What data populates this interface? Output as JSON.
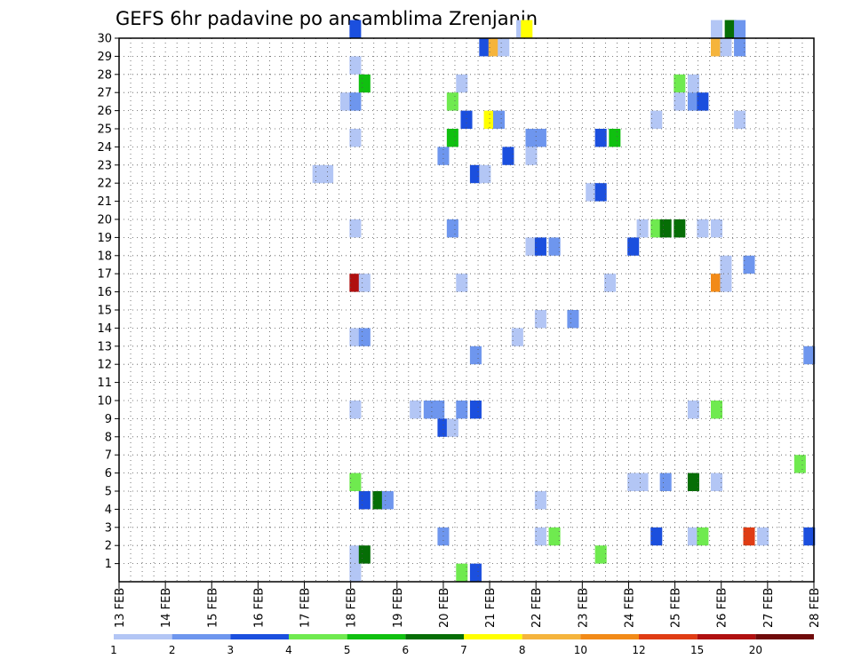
{
  "chart_data": {
    "type": "heatmap",
    "title": "GEFS 6hr padavine po ansamblima Zrenjanin",
    "x_tick_labels": [
      "13 FEB",
      "14 FEB",
      "15 FEB",
      "16 FEB",
      "17 FEB",
      "18 FEB",
      "19 FEB",
      "20 FEB",
      "21 FEB",
      "22 FEB",
      "23 FEB",
      "24 FEB",
      "25 FEB",
      "26 FEB",
      "27 FEB",
      "28 FEB"
    ],
    "y_tick_labels": [
      "1",
      "2",
      "3",
      "4",
      "5",
      "6",
      "7",
      "8",
      "9",
      "10",
      "11",
      "12",
      "13",
      "14",
      "15",
      "16",
      "17",
      "18",
      "19",
      "20",
      "21",
      "22",
      "23",
      "24",
      "25",
      "26",
      "27",
      "28",
      "29",
      "30"
    ],
    "xlim_days": [
      0,
      15
    ],
    "ylim": [
      0,
      30
    ],
    "grid": true,
    "color_levels": [
      "1",
      "2",
      "3",
      "4",
      "5",
      "6",
      "7",
      "8",
      "10",
      "12",
      "15",
      "20"
    ],
    "color_scale": [
      "#b3c6f5",
      "#6e96ee",
      "#1b4fde",
      "#6fea4f",
      "#10c010",
      "#066e06",
      "#ffff00",
      "#f5b43c",
      "#f28a18",
      "#e03c14",
      "#b01010",
      "#700a0a"
    ],
    "cells": [
      [
        5.1,
        30,
        2
      ],
      [
        8.7,
        30,
        0
      ],
      [
        8.8,
        30,
        6
      ],
      [
        12.9,
        30,
        0
      ],
      [
        13.2,
        30,
        5
      ],
      [
        13.4,
        30,
        1
      ],
      [
        7.9,
        29,
        2
      ],
      [
        8.1,
        29,
        7
      ],
      [
        8.3,
        29,
        0
      ],
      [
        12.9,
        29,
        7
      ],
      [
        13.1,
        29,
        0
      ],
      [
        13.4,
        29,
        1
      ],
      [
        5.1,
        28,
        0
      ],
      [
        5.3,
        27,
        4
      ],
      [
        7.4,
        27,
        0
      ],
      [
        12.1,
        27,
        3
      ],
      [
        12.4,
        27,
        0
      ],
      [
        4.9,
        26,
        0
      ],
      [
        5.1,
        26,
        1
      ],
      [
        7.2,
        26,
        3
      ],
      [
        12.1,
        26,
        0
      ],
      [
        12.4,
        26,
        1
      ],
      [
        12.6,
        26,
        2
      ],
      [
        7.5,
        25,
        2
      ],
      [
        8.0,
        25,
        6
      ],
      [
        8.2,
        25,
        1
      ],
      [
        11.6,
        25,
        0
      ],
      [
        13.4,
        25,
        0
      ],
      [
        5.1,
        24,
        0
      ],
      [
        7.2,
        24,
        4
      ],
      [
        8.9,
        24,
        1
      ],
      [
        9.1,
        24,
        1
      ],
      [
        10.4,
        24,
        2
      ],
      [
        10.7,
        24,
        4
      ],
      [
        7.0,
        23,
        1
      ],
      [
        8.4,
        23,
        2
      ],
      [
        8.9,
        23,
        0
      ],
      [
        4.3,
        22,
        0
      ],
      [
        4.5,
        22,
        0
      ],
      [
        7.7,
        22,
        2
      ],
      [
        7.9,
        22,
        0
      ],
      [
        10.2,
        21,
        0
      ],
      [
        10.4,
        21,
        2
      ],
      [
        5.1,
        19,
        0
      ],
      [
        7.2,
        19,
        1
      ],
      [
        11.3,
        19,
        0
      ],
      [
        11.6,
        19,
        3
      ],
      [
        11.8,
        19,
        5
      ],
      [
        12.1,
        19,
        5
      ],
      [
        12.6,
        19,
        0
      ],
      [
        12.9,
        19,
        0
      ],
      [
        8.9,
        18,
        0
      ],
      [
        9.1,
        18,
        2
      ],
      [
        9.4,
        18,
        1
      ],
      [
        11.1,
        18,
        2
      ],
      [
        13.1,
        17,
        0
      ],
      [
        13.6,
        17,
        1
      ],
      [
        5.1,
        16,
        10
      ],
      [
        5.3,
        16,
        0
      ],
      [
        7.4,
        16,
        0
      ],
      [
        10.6,
        16,
        0
      ],
      [
        12.9,
        16,
        8
      ],
      [
        13.1,
        16,
        0
      ],
      [
        9.1,
        14,
        0
      ],
      [
        9.8,
        14,
        1
      ],
      [
        5.1,
        13,
        0
      ],
      [
        5.3,
        13,
        1
      ],
      [
        8.6,
        13,
        0
      ],
      [
        7.7,
        12,
        1
      ],
      [
        14.9,
        12,
        1
      ],
      [
        5.1,
        9,
        0
      ],
      [
        6.4,
        9,
        0
      ],
      [
        6.7,
        9,
        1
      ],
      [
        6.9,
        9,
        1
      ],
      [
        7.4,
        9,
        1
      ],
      [
        7.7,
        9,
        2
      ],
      [
        12.4,
        9,
        0
      ],
      [
        12.9,
        9,
        3
      ],
      [
        7.0,
        8,
        2
      ],
      [
        7.2,
        8,
        0
      ],
      [
        14.7,
        6,
        3
      ],
      [
        5.1,
        5,
        3
      ],
      [
        11.1,
        5,
        0
      ],
      [
        11.3,
        5,
        0
      ],
      [
        11.8,
        5,
        1
      ],
      [
        12.4,
        5,
        5
      ],
      [
        12.9,
        5,
        0
      ],
      [
        5.3,
        4,
        2
      ],
      [
        5.6,
        4,
        5
      ],
      [
        5.8,
        4,
        1
      ],
      [
        9.1,
        4,
        0
      ],
      [
        7.0,
        2,
        1
      ],
      [
        9.1,
        2,
        0
      ],
      [
        9.4,
        2,
        3
      ],
      [
        11.6,
        2,
        2
      ],
      [
        12.4,
        2,
        0
      ],
      [
        12.6,
        2,
        3
      ],
      [
        13.6,
        2,
        9
      ],
      [
        13.9,
        2,
        0
      ],
      [
        14.9,
        2,
        2
      ],
      [
        5.1,
        1,
        0
      ],
      [
        5.3,
        1,
        5
      ],
      [
        10.4,
        1,
        3
      ],
      [
        5.1,
        0,
        0
      ],
      [
        7.4,
        0,
        3
      ],
      [
        7.7,
        0,
        2
      ]
    ]
  }
}
